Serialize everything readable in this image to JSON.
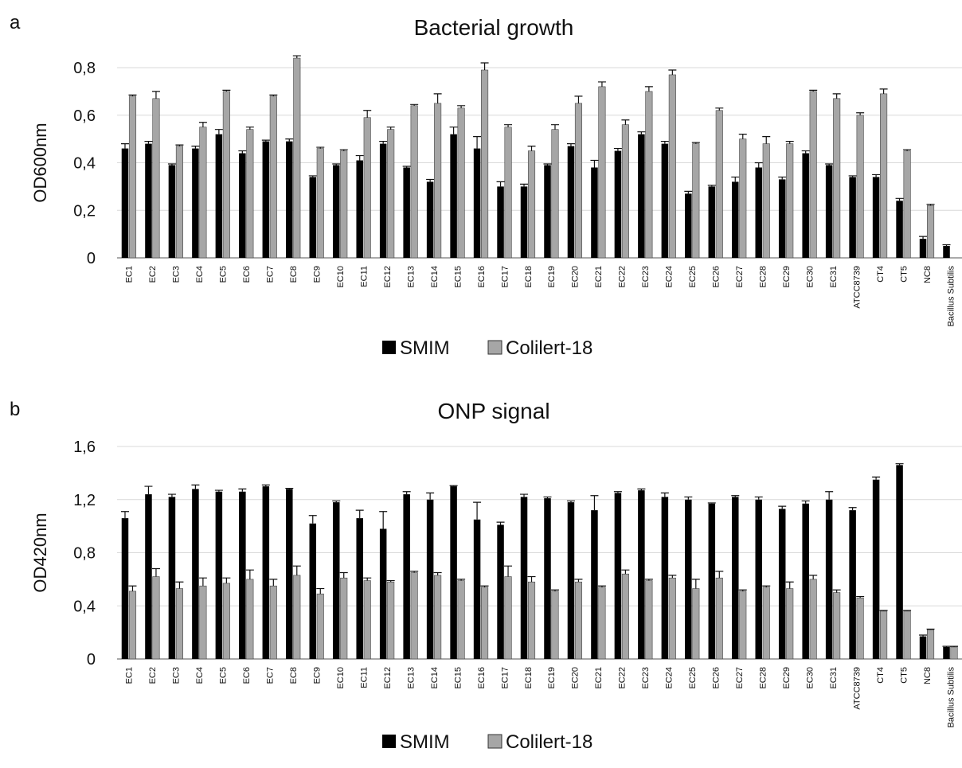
{
  "chart_data": [
    {
      "panel_label": "a",
      "type": "bar",
      "title": "Bacterial growth",
      "ylabel": "OD600nm",
      "xlabel": "",
      "ylim": [
        0,
        0.8
      ],
      "yticks": [
        0,
        0.2,
        0.4,
        0.6,
        0.8
      ],
      "ytick_labels": [
        "0",
        "0,2",
        "0,4",
        "0,6",
        "0,8"
      ],
      "grid": true,
      "legend_position": "bottom",
      "categories": [
        "EC1",
        "EC2",
        "EC3",
        "EC4",
        "EC5",
        "EC6",
        "EC7",
        "EC8",
        "EC9",
        "EC10",
        "EC11",
        "EC12",
        "EC13",
        "EC14",
        "EC15",
        "EC16",
        "EC17",
        "EC18",
        "EC19",
        "EC20",
        "EC21",
        "EC22",
        "EC23",
        "EC24",
        "EC25",
        "EC26",
        "EC27",
        "EC28",
        "EC29",
        "EC30",
        "EC31",
        "ATCC8739",
        "CT4",
        "CT5",
        "NC8",
        "Bacillus Subtilis"
      ],
      "series": [
        {
          "name": "SMIM",
          "color": "#000000",
          "values": [
            0.46,
            0.48,
            0.39,
            0.46,
            0.52,
            0.44,
            0.49,
            0.49,
            0.34,
            0.39,
            0.41,
            0.48,
            0.38,
            0.32,
            0.52,
            0.46,
            0.3,
            0.3,
            0.39,
            0.47,
            0.38,
            0.45,
            0.52,
            0.48,
            0.27,
            0.3,
            0.32,
            0.38,
            0.33,
            0.44,
            0.39,
            0.34,
            0.34,
            0.24,
            0.08,
            0.05
          ],
          "errors": [
            0.02,
            0.01,
            0.005,
            0.01,
            0.02,
            0.01,
            0.005,
            0.01,
            0.005,
            0.005,
            0.02,
            0.01,
            0.005,
            0.01,
            0.03,
            0.05,
            0.02,
            0.01,
            0.005,
            0.01,
            0.03,
            0.01,
            0.01,
            0.01,
            0.01,
            0.005,
            0.02,
            0.02,
            0.01,
            0.01,
            0.005,
            0.005,
            0.01,
            0.01,
            0.01,
            0.005
          ]
        },
        {
          "name": "Colilert-18",
          "color": "#a6a6a6",
          "values": [
            0.68,
            0.67,
            0.47,
            0.55,
            0.7,
            0.54,
            0.68,
            0.84,
            0.46,
            0.45,
            0.59,
            0.54,
            0.64,
            0.65,
            0.63,
            0.79,
            0.55,
            0.45,
            0.54,
            0.65,
            0.72,
            0.56,
            0.7,
            0.77,
            0.48,
            0.62,
            0.5,
            0.48,
            0.48,
            0.7,
            0.67,
            0.6,
            0.69,
            0.45,
            0.22,
            0.0
          ],
          "errors": [
            0.005,
            0.03,
            0.005,
            0.02,
            0.005,
            0.01,
            0.005,
            0.01,
            0.005,
            0.005,
            0.03,
            0.01,
            0.005,
            0.04,
            0.01,
            0.03,
            0.01,
            0.02,
            0.02,
            0.03,
            0.02,
            0.02,
            0.02,
            0.02,
            0.005,
            0.01,
            0.02,
            0.03,
            0.01,
            0.005,
            0.02,
            0.01,
            0.02,
            0.005,
            0.005,
            0.0
          ]
        }
      ]
    },
    {
      "panel_label": "b",
      "type": "bar",
      "title": "ONP signal",
      "ylabel": "OD420nm",
      "xlabel": "",
      "ylim": [
        0,
        1.6
      ],
      "yticks": [
        0,
        0.4,
        0.8,
        1.2,
        1.6
      ],
      "ytick_labels": [
        "0",
        "0,4",
        "0,8",
        "1,2",
        "1,6"
      ],
      "grid": true,
      "legend_position": "bottom",
      "categories": [
        "EC1",
        "EC2",
        "EC3",
        "EC4",
        "EC5",
        "EC6",
        "EC7",
        "EC8",
        "EC9",
        "EC10",
        "EC11",
        "EC12",
        "EC13",
        "EC14",
        "EC15",
        "EC16",
        "EC17",
        "EC18",
        "EC19",
        "EC20",
        "EC21",
        "EC22",
        "EC23",
        "EC24",
        "EC25",
        "EC26",
        "EC27",
        "EC28",
        "EC29",
        "EC30",
        "EC31",
        "ATCC8739",
        "CT4",
        "CT5",
        "NC8",
        "Bacillus Subtilis"
      ],
      "series": [
        {
          "name": "SMIM",
          "color": "#000000",
          "values": [
            1.06,
            1.24,
            1.22,
            1.28,
            1.26,
            1.26,
            1.3,
            1.28,
            1.02,
            1.18,
            1.06,
            0.98,
            1.24,
            1.2,
            1.3,
            1.05,
            1.01,
            1.22,
            1.21,
            1.18,
            1.12,
            1.25,
            1.27,
            1.22,
            1.2,
            1.17,
            1.22,
            1.2,
            1.13,
            1.17,
            1.2,
            1.12,
            1.35,
            1.46,
            0.17,
            0.09
          ],
          "errors": [
            0.05,
            0.06,
            0.02,
            0.03,
            0.01,
            0.02,
            0.01,
            0.005,
            0.06,
            0.01,
            0.06,
            0.13,
            0.02,
            0.05,
            0.005,
            0.13,
            0.02,
            0.02,
            0.01,
            0.01,
            0.11,
            0.01,
            0.01,
            0.03,
            0.02,
            0.005,
            0.01,
            0.02,
            0.02,
            0.02,
            0.06,
            0.02,
            0.02,
            0.01,
            0.01,
            0.005
          ]
        },
        {
          "name": "Colilert-18",
          "color": "#a6a6a6",
          "values": [
            0.51,
            0.62,
            0.53,
            0.55,
            0.57,
            0.6,
            0.55,
            0.63,
            0.49,
            0.61,
            0.59,
            0.58,
            0.65,
            0.63,
            0.59,
            0.54,
            0.62,
            0.58,
            0.51,
            0.58,
            0.54,
            0.64,
            0.59,
            0.61,
            0.53,
            0.61,
            0.51,
            0.54,
            0.53,
            0.6,
            0.5,
            0.46,
            0.36,
            0.36,
            0.22,
            0.09
          ],
          "errors": [
            0.04,
            0.06,
            0.05,
            0.06,
            0.04,
            0.07,
            0.05,
            0.07,
            0.04,
            0.04,
            0.02,
            0.01,
            0.01,
            0.02,
            0.01,
            0.01,
            0.08,
            0.04,
            0.01,
            0.02,
            0.01,
            0.03,
            0.01,
            0.02,
            0.07,
            0.05,
            0.01,
            0.01,
            0.05,
            0.03,
            0.02,
            0.01,
            0.005,
            0.005,
            0.005,
            0.005
          ]
        }
      ]
    }
  ]
}
